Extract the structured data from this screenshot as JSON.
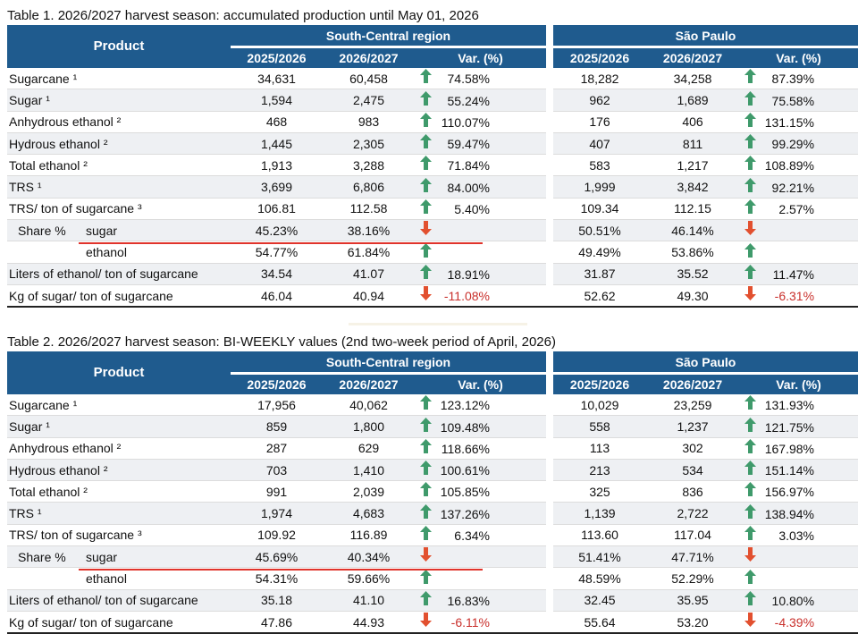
{
  "tables": [
    {
      "caption_label": "Table 1.",
      "caption_text": "2026/2027 harvest season: accumulated production until May 01, 2026",
      "header": {
        "product": "Product",
        "region_sc": "South-Central region",
        "region_sp": "São Paulo",
        "cols": [
          "2025/2026",
          "2026/2027",
          "Var. (%)",
          "2025/2026",
          "2026/2027",
          "Var. (%)"
        ]
      },
      "rows": [
        {
          "label": "Sugarcane ¹",
          "sc_a": "34,631",
          "sc_b": "60,458",
          "sc_var": "74.58%",
          "sc_dir": "up",
          "sp_a": "18,282",
          "sp_b": "34,258",
          "sp_var": "87.39%",
          "sp_dir": "up"
        },
        {
          "label": "Sugar ¹",
          "sc_a": "1,594",
          "sc_b": "2,475",
          "sc_var": "55.24%",
          "sc_dir": "up",
          "sp_a": "962",
          "sp_b": "1,689",
          "sp_var": "75.58%",
          "sp_dir": "up"
        },
        {
          "label": "Anhydrous ethanol ²",
          "sc_a": "468",
          "sc_b": "983",
          "sc_var": "110.07%",
          "sc_dir": "up",
          "sp_a": "176",
          "sp_b": "406",
          "sp_var": "131.15%",
          "sp_dir": "up"
        },
        {
          "label": "Hydrous ethanol ²",
          "sc_a": "1,445",
          "sc_b": "2,305",
          "sc_var": "59.47%",
          "sc_dir": "up",
          "sp_a": "407",
          "sp_b": "811",
          "sp_var": "99.29%",
          "sp_dir": "up"
        },
        {
          "label": "Total ethanol ²",
          "sc_a": "1,913",
          "sc_b": "3,288",
          "sc_var": "71.84%",
          "sc_dir": "up",
          "sp_a": "583",
          "sp_b": "1,217",
          "sp_var": "108.89%",
          "sp_dir": "up"
        },
        {
          "label": "TRS ¹",
          "sc_a": "3,699",
          "sc_b": "6,806",
          "sc_var": "84.00%",
          "sc_dir": "up",
          "sp_a": "1,999",
          "sp_b": "3,842",
          "sp_var": "92.21%",
          "sp_dir": "up"
        },
        {
          "label": "TRS/ ton of sugarcane ³",
          "sc_a": "106.81",
          "sc_b": "112.58",
          "sc_var": "5.40%",
          "sc_dir": "up",
          "sp_a": "109.34",
          "sp_b": "112.15",
          "sp_var": "2.57%",
          "sp_dir": "up"
        }
      ],
      "share": {
        "label": "Share %",
        "sugar": {
          "label": "sugar",
          "sc_a": "45.23%",
          "sc_b": "38.16%",
          "sc_dir": "down",
          "sp_a": "50.51%",
          "sp_b": "46.14%",
          "sp_dir": "down"
        },
        "ethanol": {
          "label": "ethanol",
          "sc_a": "54.77%",
          "sc_b": "61.84%",
          "sc_dir": "up",
          "sp_a": "49.49%",
          "sp_b": "53.86%",
          "sp_dir": "up"
        }
      },
      "tail_rows": [
        {
          "label": "Liters of ethanol/ ton of sugarcane",
          "sc_a": "34.54",
          "sc_b": "41.07",
          "sc_var": "18.91%",
          "sc_dir": "up",
          "sp_a": "31.87",
          "sp_b": "35.52",
          "sp_var": "11.47%",
          "sp_dir": "up"
        },
        {
          "label": "Kg of sugar/ ton of sugarcane",
          "sc_a": "46.04",
          "sc_b": "40.94",
          "sc_var": "-11.08%",
          "sc_dir": "down",
          "sp_a": "52.62",
          "sp_b": "49.30",
          "sp_var": "-6.31%",
          "sp_dir": "down"
        }
      ]
    },
    {
      "caption_label": "Table 2.",
      "caption_text": "2026/2027 harvest season: BI-WEEKLY values (2nd two-week period of April, 2026)",
      "header": {
        "product": "Product",
        "region_sc": "South-Central region",
        "region_sp": "São Paulo",
        "cols": [
          "2025/2026",
          "2026/2027",
          "Var. (%)",
          "2025/2026",
          "2026/2027",
          "Var. (%)"
        ]
      },
      "rows": [
        {
          "label": "Sugarcane ¹",
          "sc_a": "17,956",
          "sc_b": "40,062",
          "sc_var": "123.12%",
          "sc_dir": "up",
          "sp_a": "10,029",
          "sp_b": "23,259",
          "sp_var": "131.93%",
          "sp_dir": "up"
        },
        {
          "label": "Sugar ¹",
          "sc_a": "859",
          "sc_b": "1,800",
          "sc_var": "109.48%",
          "sc_dir": "up",
          "sp_a": "558",
          "sp_b": "1,237",
          "sp_var": "121.75%",
          "sp_dir": "up"
        },
        {
          "label": "Anhydrous ethanol ²",
          "sc_a": "287",
          "sc_b": "629",
          "sc_var": "118.66%",
          "sc_dir": "up",
          "sp_a": "113",
          "sp_b": "302",
          "sp_var": "167.98%",
          "sp_dir": "up"
        },
        {
          "label": "Hydrous ethanol ²",
          "sc_a": "703",
          "sc_b": "1,410",
          "sc_var": "100.61%",
          "sc_dir": "up",
          "sp_a": "213",
          "sp_b": "534",
          "sp_var": "151.14%",
          "sp_dir": "up"
        },
        {
          "label": "Total ethanol ²",
          "sc_a": "991",
          "sc_b": "2,039",
          "sc_var": "105.85%",
          "sc_dir": "up",
          "sp_a": "325",
          "sp_b": "836",
          "sp_var": "156.97%",
          "sp_dir": "up"
        },
        {
          "label": "TRS ¹",
          "sc_a": "1,974",
          "sc_b": "4,683",
          "sc_var": "137.26%",
          "sc_dir": "up",
          "sp_a": "1,139",
          "sp_b": "2,722",
          "sp_var": "138.94%",
          "sp_dir": "up"
        },
        {
          "label": "TRS/ ton of sugarcane ³",
          "sc_a": "109.92",
          "sc_b": "116.89",
          "sc_var": "6.34%",
          "sc_dir": "up",
          "sp_a": "113.60",
          "sp_b": "117.04",
          "sp_var": "3.03%",
          "sp_dir": "up"
        }
      ],
      "share": {
        "label": "Share %",
        "sugar": {
          "label": "sugar",
          "sc_a": "45.69%",
          "sc_b": "40.34%",
          "sc_dir": "down",
          "sp_a": "51.41%",
          "sp_b": "47.71%",
          "sp_dir": "down"
        },
        "ethanol": {
          "label": "ethanol",
          "sc_a": "54.31%",
          "sc_b": "59.66%",
          "sc_dir": "up",
          "sp_a": "48.59%",
          "sp_b": "52.29%",
          "sp_dir": "up"
        }
      },
      "tail_rows": [
        {
          "label": "Liters of ethanol/ ton of sugarcane",
          "sc_a": "35.18",
          "sc_b": "41.10",
          "sc_var": "16.83%",
          "sc_dir": "up",
          "sp_a": "32.45",
          "sp_b": "35.95",
          "sp_var": "10.80%",
          "sp_dir": "up"
        },
        {
          "label": "Kg of sugar/ ton of sugarcane",
          "sc_a": "47.86",
          "sc_b": "44.93",
          "sc_var": "-6.11%",
          "sc_dir": "down",
          "sp_a": "55.64",
          "sp_b": "53.20",
          "sp_var": "-4.39%",
          "sp_dir": "down"
        }
      ]
    }
  ],
  "colors": {
    "header_bg": "#1f5b8e",
    "header_text": "#ffffff",
    "arrow_up": "#3f9a6b",
    "arrow_down": "#e2502f",
    "negative_text": "#c9302c",
    "share_underline": "#e0332b",
    "stripe": "#eef0f3"
  },
  "icons": {
    "up": "arrow-up-icon",
    "down": "arrow-down-icon"
  }
}
